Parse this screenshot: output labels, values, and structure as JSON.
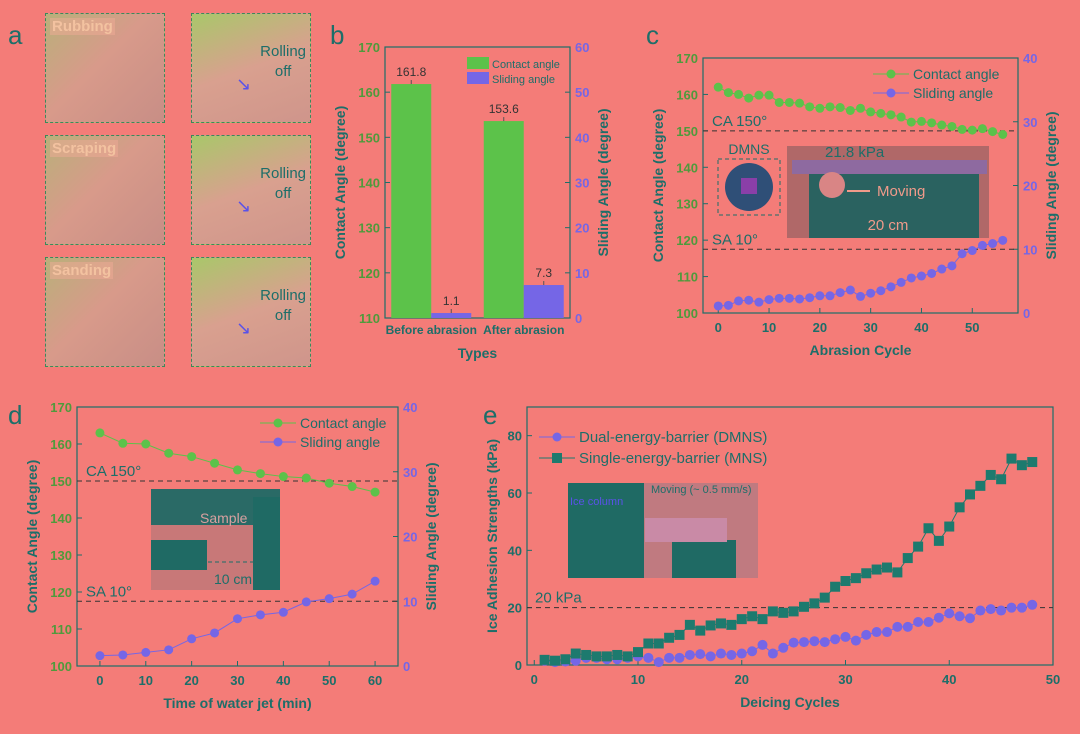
{
  "panel_letters": [
    "a",
    "b",
    "c",
    "d",
    "e"
  ],
  "panel_a": {
    "rows": [
      {
        "label": "Rubbing"
      },
      {
        "label": "Scraping"
      },
      {
        "label": "Sanding"
      }
    ],
    "rolling_text": [
      "Rolling",
      "off"
    ],
    "arrow_icon": "arrow-down-right"
  },
  "colors": {
    "background": "#f47c78",
    "axis": "#1d6e69",
    "contact": "#5cc24a",
    "sliding": "#7566e6",
    "mns": "#1d7a6e"
  },
  "chart_data": [
    {
      "id": "b",
      "type": "bar",
      "categories": [
        "Before abrasion",
        "After abrasion"
      ],
      "series": [
        {
          "name": "Contact angle",
          "axis": "left",
          "values": [
            161.8,
            153.6
          ]
        },
        {
          "name": "Sliding angle",
          "axis": "right",
          "values": [
            1.1,
            7.3
          ]
        }
      ],
      "data_labels": [
        "161.8",
        "153.6",
        "1.1",
        "7.3"
      ],
      "xlabel": "Types",
      "ylabel": "Contact Angle (degree)",
      "y2label": "Sliding Angle (degree)",
      "ylim": [
        110,
        170
      ],
      "y2lim": [
        0,
        60
      ],
      "yticks": [
        110,
        120,
        130,
        140,
        150,
        160,
        170
      ],
      "y2ticks": [
        0,
        10,
        20,
        30,
        40,
        50,
        60
      ],
      "legend": "top-right"
    },
    {
      "id": "c",
      "type": "line",
      "xlabel": "Abrasion Cycle",
      "ylabel": "Contact Angle (degree)",
      "y2label": "Sliding Angle (degree)",
      "xlim": [
        -3,
        59
      ],
      "ylim": [
        100,
        170
      ],
      "y2lim": [
        0,
        40
      ],
      "xticks": [
        0,
        10,
        20,
        30,
        40,
        50
      ],
      "yticks": [
        100,
        110,
        120,
        130,
        140,
        150,
        160,
        170
      ],
      "y2ticks": [
        0,
        10,
        20,
        30,
        40
      ],
      "x": [
        0,
        2,
        4,
        6,
        8,
        10,
        12,
        14,
        16,
        18,
        20,
        22,
        24,
        26,
        28,
        30,
        32,
        34,
        36,
        38,
        40,
        42,
        44,
        46,
        48,
        50,
        52,
        54,
        56
      ],
      "series": [
        {
          "name": "Contact angle",
          "axis": "left",
          "values": [
            162,
            160.5,
            160,
            159,
            159.8,
            159.8,
            157.8,
            157.8,
            157.6,
            156.6,
            156.2,
            156.6,
            156.4,
            155.6,
            156.2,
            155.2,
            154.8,
            154.4,
            153.8,
            152.4,
            152.6,
            152.2,
            151.6,
            151.2,
            150.4,
            150.2,
            150.6,
            149.8,
            149
          ]
        },
        {
          "name": "Sliding angle",
          "axis": "right",
          "values": [
            1.1,
            1.2,
            1.9,
            2.0,
            1.7,
            2.1,
            2.3,
            2.3,
            2.2,
            2.4,
            2.7,
            2.7,
            3.2,
            3.6,
            2.6,
            3.1,
            3.5,
            4.1,
            4.8,
            5.5,
            5.8,
            6.2,
            6.9,
            7.4,
            9.3,
            9.8,
            10.6,
            10.9,
            11.4
          ]
        }
      ],
      "reference_lines": [
        {
          "label": "CA 150°",
          "axis": "left",
          "value": 150
        },
        {
          "label": "SA 10°",
          "axis": "right",
          "value": 10
        }
      ],
      "inset": {
        "labels": [
          "DMNS",
          "21.8 kPa",
          "Moving",
          "20 cm"
        ]
      },
      "legend": "top-right"
    },
    {
      "id": "d",
      "type": "line",
      "xlabel": "Time of water jet (min)",
      "ylabel": "Contact Angle (degree)",
      "y2label": "Sliding Angle (degree)",
      "xlim": [
        -5,
        65
      ],
      "ylim": [
        100,
        170
      ],
      "y2lim": [
        0,
        40
      ],
      "xticks": [
        0,
        10,
        20,
        30,
        40,
        50,
        60
      ],
      "yticks": [
        100,
        110,
        120,
        130,
        140,
        150,
        160,
        170
      ],
      "y2ticks": [
        0,
        10,
        20,
        30,
        40
      ],
      "x": [
        0,
        5,
        10,
        15,
        20,
        25,
        30,
        35,
        40,
        45,
        50,
        55,
        60
      ],
      "series": [
        {
          "name": "Contact angle",
          "axis": "left",
          "values": [
            163,
            160.2,
            160,
            157.5,
            156.6,
            154.8,
            153,
            152,
            151.2,
            150.8,
            149.4,
            148.5,
            147
          ]
        },
        {
          "name": "Sliding angle",
          "axis": "right",
          "values": [
            1.6,
            1.7,
            2.1,
            2.5,
            4.2,
            5.1,
            7.3,
            7.9,
            8.3,
            9.9,
            10.4,
            11.1,
            13.1
          ]
        }
      ],
      "reference_lines": [
        {
          "label": "CA 150°",
          "axis": "left",
          "value": 150
        },
        {
          "label": "SA 10°",
          "axis": "right",
          "value": 10
        }
      ],
      "inset": {
        "labels": [
          "Sample",
          "10 cm"
        ]
      },
      "legend": "top-right"
    },
    {
      "id": "e",
      "type": "line",
      "xlabel": "Deicing Cycles",
      "ylabel": "Ice Adhesion Strengths (kPa)",
      "xlim": [
        -0.7,
        50
      ],
      "ylim": [
        0,
        90
      ],
      "xticks": [
        0,
        10,
        20,
        30,
        40,
        50
      ],
      "yticks": [
        0,
        20,
        40,
        60,
        80
      ],
      "x": [
        1,
        2,
        3,
        4,
        5,
        6,
        7,
        8,
        9,
        10,
        11,
        12,
        13,
        14,
        15,
        16,
        17,
        18,
        19,
        20,
        21,
        22,
        23,
        24,
        25,
        26,
        27,
        28,
        29,
        30,
        31,
        32,
        33,
        34,
        35,
        36,
        37,
        38,
        39,
        40,
        41,
        42,
        43,
        44,
        45,
        46,
        47,
        48
      ],
      "series": [
        {
          "name": "Dual-energy-barrier (DMNS)",
          "axis": "left",
          "values": [
            1.5,
            1,
            1.2,
            1.5,
            2.5,
            2.5,
            2,
            2,
            2.5,
            3,
            2.5,
            1,
            2.5,
            2.5,
            3.5,
            3.8,
            3,
            4,
            3.5,
            4,
            4.8,
            7,
            4,
            6,
            7.8,
            8,
            8.3,
            8,
            9,
            9.8,
            8.5,
            10.5,
            11.5,
            11.5,
            13.3,
            13.3,
            15,
            15,
            16.5,
            18,
            17,
            16.3,
            19,
            19.5,
            19,
            20,
            20,
            21
          ]
        },
        {
          "name": "Single-energy-barrier (MNS)",
          "axis": "left",
          "values": [
            1.8,
            1.5,
            2,
            4,
            3.5,
            3,
            3,
            3.5,
            3,
            4.5,
            7.5,
            7.5,
            9.5,
            10.5,
            14,
            12,
            13.8,
            14.5,
            14,
            16,
            17,
            16,
            18.7,
            18.2,
            18.7,
            20.3,
            21.5,
            23.5,
            27.3,
            29.3,
            30.3,
            32,
            33.3,
            34,
            32.3,
            37.3,
            41.3,
            47.7,
            43.3,
            48.3,
            55,
            59.5,
            62.5,
            66.3,
            64.8,
            72,
            69.7,
            70.8
          ]
        }
      ],
      "reference_lines": [
        {
          "label": "20 kPa",
          "axis": "left",
          "value": 20
        }
      ],
      "inset": {
        "labels": [
          "Ice column",
          "Moving (~ 0.5 mm/s)"
        ]
      },
      "legend": "top-left"
    }
  ]
}
